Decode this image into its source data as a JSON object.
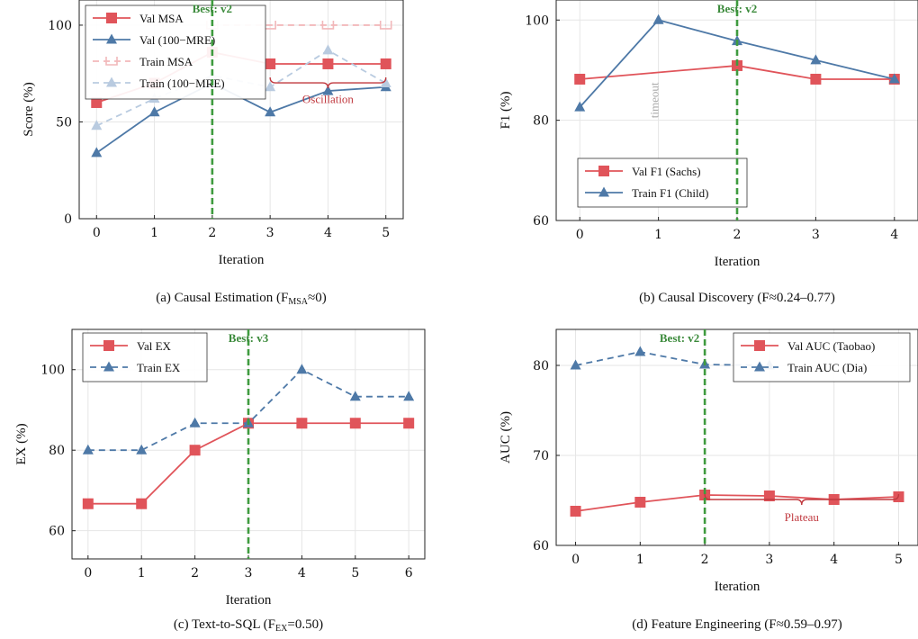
{
  "colors": {
    "red": "#e0545a",
    "blue": "#4e79a7",
    "red_light": "#f2b8ba",
    "blue_light": "#b9cbe0",
    "green": "#3f9b3f",
    "annot_red": "#c0393f",
    "timeout_gray": "#aaaaaa"
  },
  "chart_data": [
    {
      "type": "line",
      "caption": "(a) Causal Estimation (F",
      "caption_sub": "MSA",
      "caption_tail": "≈0)",
      "xlabel": "Iteration",
      "ylabel": "Score (%)",
      "x": [
        0,
        1,
        2,
        3,
        4,
        5
      ],
      "xlim": [
        -0.3,
        5.3
      ],
      "ylim": [
        0,
        113
      ],
      "yticks": [
        0,
        50,
        100
      ],
      "best": {
        "x": 2,
        "label": "Best: v2"
      },
      "legend": "top-left",
      "series": [
        {
          "name": "Val MSA",
          "values": [
            60,
            70,
            86,
            80,
            80,
            80
          ],
          "color": "red",
          "marker": "square",
          "dashed": false
        },
        {
          "name": "Val (100−MRE)",
          "values": [
            34,
            55,
            70,
            55,
            66,
            68
          ],
          "color": "blue",
          "marker": "triangle",
          "dashed": false
        },
        {
          "name": "Train MSA",
          "values": [
            null,
            null,
            100,
            100,
            100,
            100
          ],
          "color": "red_light",
          "marker": "bracket",
          "dashed": true
        },
        {
          "name": "Train (100−MRE)",
          "values": [
            48,
            62,
            74,
            68,
            87,
            70
          ],
          "color": "blue_light",
          "marker": "triangle",
          "dashed": true
        }
      ],
      "annotations": [
        {
          "text": "Oscillation",
          "x": 4,
          "y": 62,
          "brace": [
            3,
            5,
            73
          ]
        }
      ]
    },
    {
      "type": "line",
      "caption": "(b) Causal Discovery (F≈0.24–0.77)",
      "xlabel": "Iteration",
      "ylabel": "F1 (%)",
      "x": [
        0,
        1,
        2,
        3,
        4
      ],
      "xlim": [
        -0.3,
        4.3
      ],
      "ylim": [
        60,
        104
      ],
      "yticks": [
        60,
        80,
        100
      ],
      "best": {
        "x": 2,
        "label": "Best: v2"
      },
      "legend": "bottom-left",
      "series": [
        {
          "name": "Val F1 (Sachs)",
          "values": [
            88.2,
            null,
            90.9,
            88.2,
            88.2
          ],
          "color": "red",
          "marker": "square",
          "dashed": false
        },
        {
          "name": "Train F1 (Child)",
          "values": [
            82.6,
            100,
            95.8,
            92,
            88.2
          ],
          "color": "blue",
          "marker": "triangle",
          "dashed": false
        }
      ],
      "annotations": [
        {
          "text": "timeout",
          "x": 1,
          "y": 84,
          "vertical": true
        }
      ]
    },
    {
      "type": "line",
      "caption": "(c) Text-to-SQL (F",
      "caption_sub": "EX",
      "caption_tail": "=0.50)",
      "xlabel": "Iteration",
      "ylabel": "EX (%)",
      "x": [
        0,
        1,
        2,
        3,
        4,
        5,
        6
      ],
      "xlim": [
        -0.3,
        6.3
      ],
      "ylim": [
        53,
        110
      ],
      "yticks": [
        60,
        80,
        100
      ],
      "best": {
        "x": 3,
        "label": "Best: v3"
      },
      "legend": "top-left",
      "series": [
        {
          "name": "Val EX",
          "values": [
            66.7,
            66.7,
            80,
            86.7,
            86.7,
            86.7,
            86.7
          ],
          "color": "red",
          "marker": "square",
          "dashed": false
        },
        {
          "name": "Train EX",
          "values": [
            80,
            80,
            86.7,
            86.7,
            100,
            93.3,
            93.3
          ],
          "color": "blue",
          "marker": "triangle",
          "dashed": true
        }
      ],
      "annotations": []
    },
    {
      "type": "line",
      "caption": "(d) Feature Engineering (F≈0.59–0.97)",
      "xlabel": "Iteration",
      "ylabel": "AUC (%)",
      "x": [
        0,
        1,
        2,
        3,
        4,
        5
      ],
      "xlim": [
        -0.3,
        5.3
      ],
      "ylim": [
        60,
        84
      ],
      "yticks": [
        60,
        70,
        80
      ],
      "best": {
        "x": 2,
        "label": "Best: v2"
      },
      "legend": "top-right",
      "series": [
        {
          "name": "Val AUC (Taobao)",
          "values": [
            63.8,
            64.8,
            65.6,
            65.5,
            65.1,
            65.4
          ],
          "color": "red",
          "marker": "square",
          "dashed": false
        },
        {
          "name": "Train AUC (Dia)",
          "values": [
            80,
            81.5,
            80.1,
            80,
            null,
            null
          ],
          "color": "blue",
          "marker": "triangle",
          "dashed": true
        }
      ],
      "annotations": [
        {
          "text": "Plateau",
          "x": 3.5,
          "y": 63.2,
          "brace": [
            2,
            5,
            65.7
          ]
        }
      ]
    }
  ]
}
